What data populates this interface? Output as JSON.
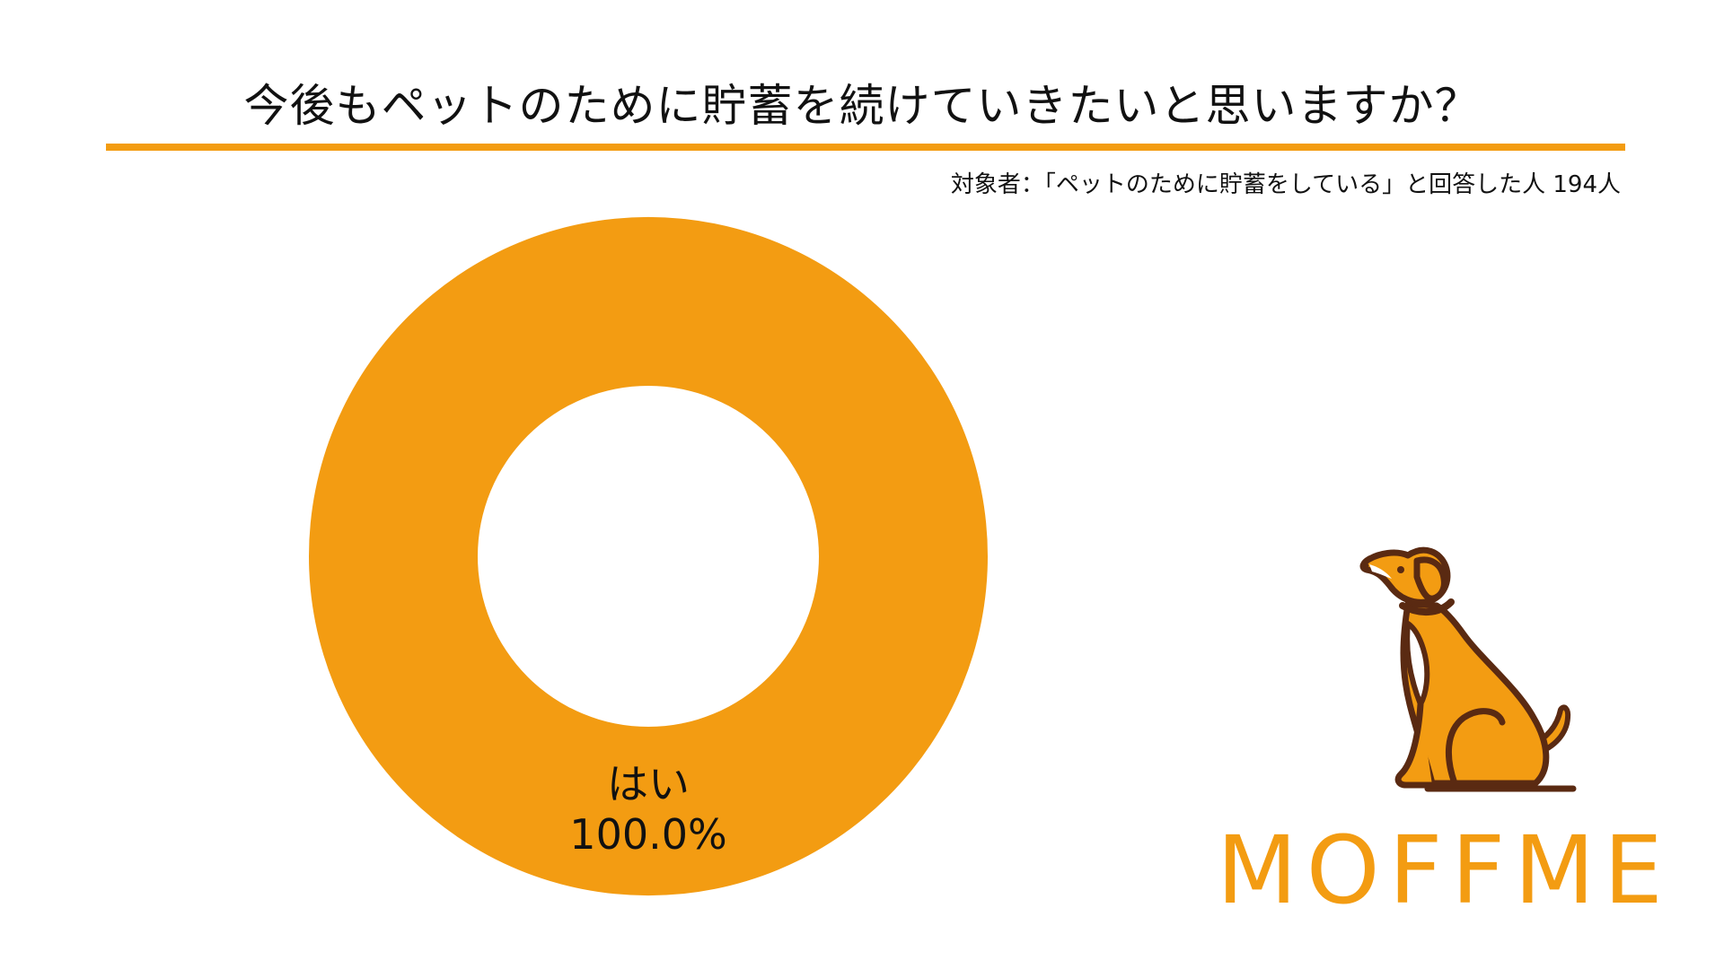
{
  "header": {
    "title": "今後もペットのために貯蓄を続けていきたいと思いますか？",
    "subtitle": "対象者：「ペットのために貯蓄をしている」と回答した人 194人"
  },
  "colors": {
    "accent": "#F39C12",
    "dog_outline": "#5A2A12",
    "dog_chest": "#FFFFFF"
  },
  "chart_data": {
    "type": "pie",
    "donut": true,
    "title": "今後もペットのために貯蓄を続けていきたいと思いますか？",
    "slices": [
      {
        "label": "はい",
        "value": 100.0,
        "value_label": "100.0%",
        "color": "#F39C12"
      }
    ]
  },
  "branding": {
    "logo_text": "MOFFME",
    "mascot_icon": "sitting-dog-icon"
  }
}
